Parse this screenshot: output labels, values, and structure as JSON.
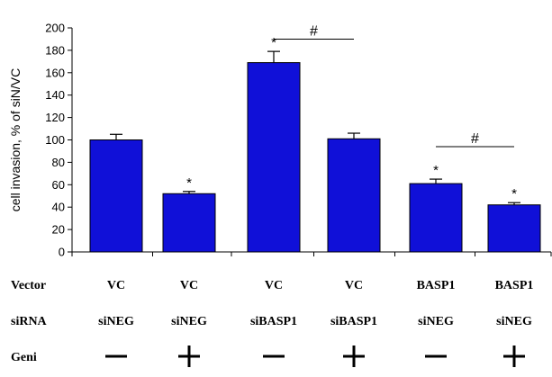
{
  "chart_data": {
    "type": "bar",
    "ylabel": "cell invasion, % of siN/VC",
    "ylim": [
      0,
      200
    ],
    "yticks": [
      0,
      20,
      40,
      60,
      80,
      100,
      120,
      140,
      160,
      180,
      200
    ],
    "bar_color": "#1010d8",
    "values": [
      100,
      52,
      169,
      101,
      61,
      42
    ],
    "errors": [
      5,
      2,
      10,
      5,
      4,
      2
    ],
    "significance_marks": [
      "",
      "*",
      "*",
      "",
      "*",
      "*"
    ],
    "brackets": [
      {
        "from": 2,
        "to": 3,
        "symbol": "#",
        "y": 190
      },
      {
        "from": 4,
        "to": 5,
        "symbol": "#",
        "y": 94
      }
    ],
    "conditions": {
      "rows": [
        {
          "label": "Vector",
          "values": [
            "VC",
            "VC",
            "VC",
            "VC",
            "BASP1",
            "BASP1"
          ]
        },
        {
          "label": "siRNA",
          "values": [
            "siNEG",
            "siNEG",
            "siBASP1",
            "siBASP1",
            "siNEG",
            "siNEG"
          ]
        },
        {
          "label": "Geni",
          "values": [
            "−",
            "+",
            "−",
            "+",
            "−",
            "+"
          ]
        }
      ]
    }
  }
}
